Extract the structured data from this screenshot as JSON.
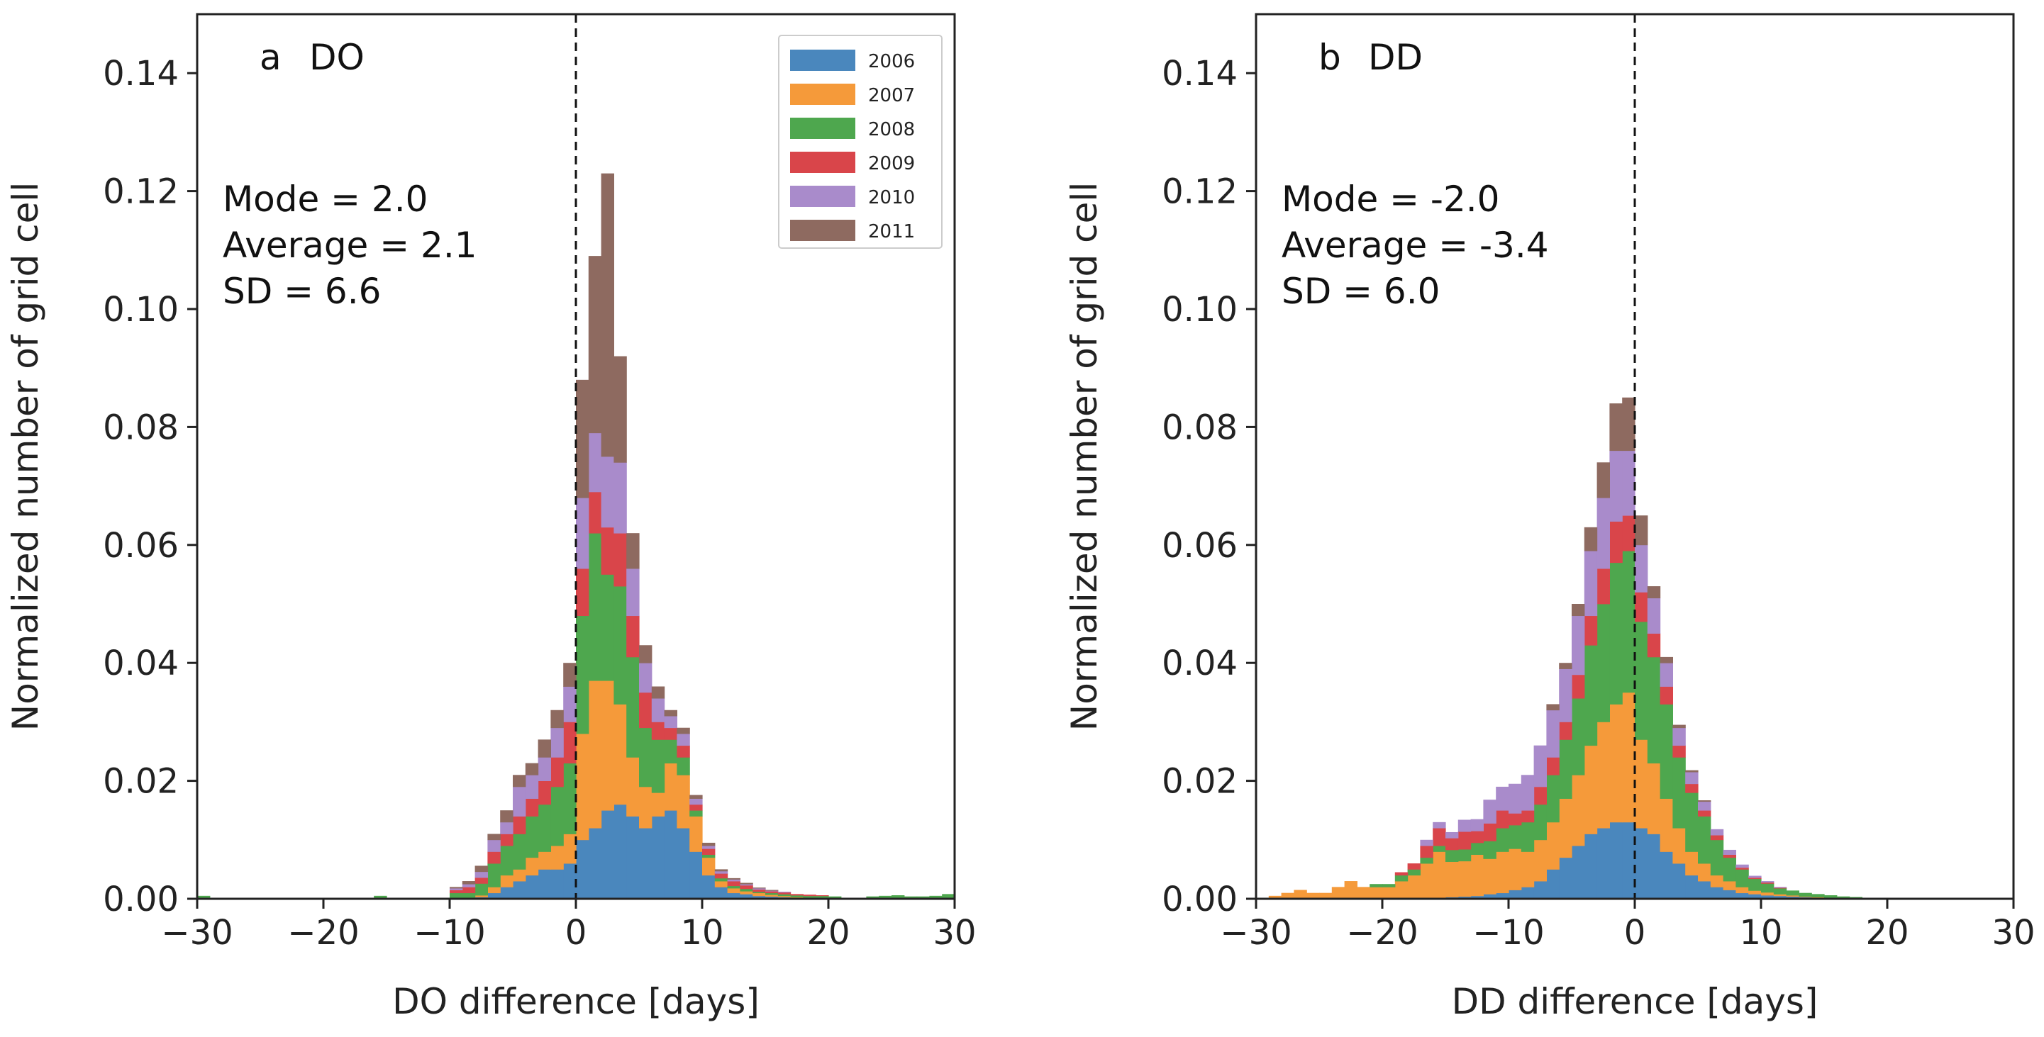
{
  "chart_data": [
    {
      "type": "bar",
      "subtype": "stacked-histogram",
      "panel_label": "a",
      "title": "DO",
      "xlabel": "DO difference [days]",
      "ylabel": "Normalized number of grid cell",
      "xlim": [
        -30,
        30
      ],
      "ylim": [
        0,
        0.15
      ],
      "xticks": [
        -30,
        -20,
        -10,
        0,
        10,
        20,
        30
      ],
      "xtick_labels": [
        "−30",
        "−20",
        "−10",
        "0",
        "10",
        "20",
        "30"
      ],
      "yticks": [
        0.0,
        0.02,
        0.04,
        0.06,
        0.08,
        0.1,
        0.12,
        0.14
      ],
      "ytick_labels": [
        "0.00",
        "0.02",
        "0.04",
        "0.06",
        "0.08",
        "0.10",
        "0.12",
        "0.14"
      ],
      "vline_x": 0,
      "bin_width": 1,
      "stats": [
        "Mode = 2.0",
        "Average = 2.1",
        "SD = 6.6"
      ],
      "legend": true,
      "legend_position": "top-right",
      "bins": [
        -30,
        -29,
        -28,
        -27,
        -26,
        -25,
        -24,
        -23,
        -22,
        -21,
        -20,
        -19,
        -18,
        -17,
        -16,
        -15,
        -14,
        -13,
        -12,
        -11,
        -10,
        -9,
        -8,
        -7,
        -6,
        -5,
        -4,
        -3,
        -2,
        -1,
        0,
        1,
        2,
        3,
        4,
        5,
        6,
        7,
        8,
        9,
        10,
        11,
        12,
        13,
        14,
        15,
        16,
        17,
        18,
        19,
        20,
        21,
        22,
        23,
        24,
        25,
        26,
        27,
        28,
        29
      ],
      "series": [
        {
          "name": "2006",
          "values": [
            0,
            0,
            0,
            0,
            0,
            0,
            0,
            0,
            0,
            0,
            0,
            0,
            0,
            0,
            0,
            0,
            0,
            0,
            0,
            0,
            0,
            0,
            0.0003,
            0.001,
            0.002,
            0.003,
            0.004,
            0.005,
            0.005,
            0.006,
            0.01,
            0.012,
            0.015,
            0.016,
            0.014,
            0.012,
            0.014,
            0.015,
            0.012,
            0.008,
            0.004,
            0.002,
            0.001,
            0.0008,
            0.0005,
            0.0004,
            0.0003,
            0.0002,
            0.0001,
            0.0001,
            0.0001,
            0,
            0,
            0,
            0,
            0,
            0,
            0,
            0,
            0
          ]
        },
        {
          "name": "2007",
          "values": [
            0,
            0,
            0,
            0,
            0,
            0,
            0,
            0,
            0,
            0,
            0,
            0,
            0,
            0,
            0,
            0,
            0,
            0,
            0,
            0,
            0,
            0,
            0.0003,
            0.001,
            0.002,
            0.002,
            0.003,
            0.003,
            0.004,
            0.005,
            0.018,
            0.025,
            0.022,
            0.017,
            0.01,
            0.007,
            0.004,
            0.008,
            0.009,
            0.006,
            0.003,
            0.001,
            0.0008,
            0.0005,
            0.0005,
            0.0003,
            0.0002,
            0.0001,
            0.0001,
            0.0001,
            0.0001,
            0,
            0,
            0,
            0,
            0,
            0,
            0,
            0,
            0
          ]
        },
        {
          "name": "2008",
          "values": [
            0.0005,
            0,
            0,
            0,
            0,
            0,
            0,
            0,
            0,
            0,
            0,
            0,
            0,
            0,
            0.0005,
            0,
            0,
            0,
            0,
            0,
            0.001,
            0.001,
            0.002,
            0.004,
            0.005,
            0.006,
            0.007,
            0.008,
            0.01,
            0.012,
            0.02,
            0.025,
            0.018,
            0.02,
            0.017,
            0.01,
            0.009,
            0.004,
            0.003,
            0.001,
            0.0005,
            0.0005,
            0.0004,
            0.0004,
            0.0002,
            0.0003,
            0.0003,
            0.0003,
            0.0003,
            0.0003,
            0.0002,
            0.0001,
            0.0001,
            0.0004,
            0.0005,
            0.0006,
            0.0004,
            0.0004,
            0.0005,
            0.0008
          ]
        },
        {
          "name": "2009",
          "values": [
            0,
            0,
            0,
            0,
            0,
            0,
            0,
            0,
            0,
            0,
            0,
            0,
            0,
            0,
            0,
            0,
            0,
            0,
            0,
            0,
            0.0005,
            0.001,
            0.001,
            0.002,
            0.002,
            0.003,
            0.003,
            0.004,
            0.005,
            0.007,
            0.008,
            0.007,
            0.008,
            0.009,
            0.007,
            0.006,
            0.003,
            0.002,
            0.002,
            0.001,
            0.001,
            0.0008,
            0.0008,
            0.0006,
            0.0004,
            0.0003,
            0.0003,
            0.0002,
            0.0002,
            0.0001,
            0,
            0,
            0,
            0,
            0,
            0,
            0,
            0,
            0,
            0
          ]
        },
        {
          "name": "2010",
          "values": [
            0,
            0,
            0,
            0,
            0,
            0,
            0,
            0,
            0,
            0,
            0,
            0,
            0,
            0,
            0,
            0,
            0,
            0,
            0,
            0,
            0.0003,
            0.0005,
            0.001,
            0.002,
            0.002,
            0.005,
            0.004,
            0.004,
            0.005,
            0.006,
            0.012,
            0.01,
            0.012,
            0.012,
            0.008,
            0.005,
            0.004,
            0.002,
            0.002,
            0.001,
            0.0005,
            0.0004,
            0.0003,
            0.0002,
            0.0002,
            0.0001,
            0.0001,
            0,
            0,
            0,
            0,
            0,
            0,
            0,
            0,
            0,
            0,
            0,
            0,
            0
          ]
        },
        {
          "name": "2011",
          "values": [
            0,
            0,
            0,
            0,
            0,
            0,
            0,
            0,
            0,
            0,
            0,
            0,
            0,
            0,
            0,
            0,
            0,
            0,
            0,
            0,
            0.0002,
            0.0005,
            0.001,
            0.001,
            0.002,
            0.002,
            0.002,
            0.003,
            0.003,
            0.004,
            0.02,
            0.03,
            0.048,
            0.018,
            0.006,
            0.003,
            0.002,
            0.001,
            0.001,
            0.0006,
            0.0005,
            0.0003,
            0.0002,
            0.0002,
            0.0001,
            0.0001,
            0,
            0,
            0,
            0,
            0,
            0,
            0,
            0,
            0,
            0,
            0,
            0,
            0,
            0
          ]
        }
      ]
    },
    {
      "type": "bar",
      "subtype": "stacked-histogram",
      "panel_label": "b",
      "title": "DD",
      "xlabel": "DD difference [days]",
      "ylabel": "Normalized number of grid cell",
      "xlim": [
        -30,
        30
      ],
      "ylim": [
        0,
        0.15
      ],
      "xticks": [
        -30,
        -20,
        -10,
        0,
        10,
        20,
        30
      ],
      "xtick_labels": [
        "−30",
        "−20",
        "−10",
        "0",
        "10",
        "20",
        "30"
      ],
      "yticks": [
        0.0,
        0.02,
        0.04,
        0.06,
        0.08,
        0.1,
        0.12,
        0.14
      ],
      "ytick_labels": [
        "0.00",
        "0.02",
        "0.04",
        "0.06",
        "0.08",
        "0.10",
        "0.12",
        "0.14"
      ],
      "vline_x": 0,
      "bin_width": 1,
      "stats": [
        "Mode = -2.0",
        "Average = -3.4",
        "SD = 6.0"
      ],
      "legend": false,
      "bins": [
        -30,
        -29,
        -28,
        -27,
        -26,
        -25,
        -24,
        -23,
        -22,
        -21,
        -20,
        -19,
        -18,
        -17,
        -16,
        -15,
        -14,
        -13,
        -12,
        -11,
        -10,
        -9,
        -8,
        -7,
        -6,
        -5,
        -4,
        -3,
        -2,
        -1,
        0,
        1,
        2,
        3,
        4,
        5,
        6,
        7,
        8,
        9,
        10,
        11,
        12,
        13,
        14,
        15,
        16,
        17,
        18,
        19,
        20,
        21,
        22,
        23,
        24,
        25,
        26,
        27,
        28,
        29
      ],
      "series": [
        {
          "name": "2006",
          "values": [
            0,
            0,
            0,
            0,
            0,
            0,
            0,
            0,
            0,
            0,
            0,
            0,
            0,
            0,
            0,
            0.0003,
            0.0004,
            0.0005,
            0.0008,
            0.001,
            0.0015,
            0.002,
            0.003,
            0.005,
            0.007,
            0.009,
            0.011,
            0.012,
            0.013,
            0.013,
            0.012,
            0.011,
            0.008,
            0.006,
            0.004,
            0.003,
            0.002,
            0.0015,
            0.001,
            0.0008,
            0.0006,
            0.0005,
            0.0004,
            0.0003,
            0.0002,
            0.0002,
            0.0001,
            0.0001,
            0,
            0,
            0,
            0,
            0,
            0,
            0,
            0,
            0,
            0,
            0,
            0
          ]
        },
        {
          "name": "2007",
          "values": [
            0,
            0.0005,
            0.001,
            0.0015,
            0.001,
            0.001,
            0.002,
            0.003,
            0.002,
            0.002,
            0.002,
            0.003,
            0.004,
            0.006,
            0.008,
            0.006,
            0.006,
            0.007,
            0.006,
            0.007,
            0.007,
            0.006,
            0.007,
            0.008,
            0.01,
            0.012,
            0.015,
            0.018,
            0.02,
            0.022,
            0.015,
            0.012,
            0.009,
            0.006,
            0.004,
            0.003,
            0.002,
            0.0015,
            0.001,
            0.0006,
            0.0005,
            0.0003,
            0.0002,
            0.0001,
            0.0001,
            0,
            0,
            0,
            0,
            0,
            0,
            0,
            0,
            0,
            0,
            0,
            0,
            0,
            0,
            0
          ]
        },
        {
          "name": "2008",
          "values": [
            0,
            0,
            0,
            0,
            0,
            0,
            0,
            0,
            0,
            0.0005,
            0.0005,
            0.001,
            0.001,
            0.001,
            0.001,
            0.002,
            0.002,
            0.002,
            0.003,
            0.004,
            0.004,
            0.005,
            0.006,
            0.008,
            0.01,
            0.013,
            0.017,
            0.02,
            0.024,
            0.024,
            0.02,
            0.018,
            0.016,
            0.012,
            0.01,
            0.008,
            0.006,
            0.004,
            0.003,
            0.002,
            0.0015,
            0.001,
            0.0008,
            0.0006,
            0.0005,
            0.0004,
            0.0003,
            0.0002,
            0.0001,
            0.0001,
            0,
            0,
            0,
            0,
            0,
            0,
            0,
            0,
            0,
            0
          ]
        },
        {
          "name": "2009",
          "values": [
            0,
            0,
            0,
            0,
            0,
            0,
            0,
            0,
            0,
            0,
            0,
            0.0005,
            0.001,
            0.002,
            0.003,
            0.002,
            0.003,
            0.002,
            0.003,
            0.003,
            0.002,
            0.002,
            0.003,
            0.003,
            0.003,
            0.004,
            0.005,
            0.006,
            0.007,
            0.006,
            0.005,
            0.004,
            0.003,
            0.002,
            0.0015,
            0.001,
            0.0008,
            0.0005,
            0.0003,
            0.0002,
            0.0002,
            0.0001,
            0,
            0,
            0,
            0,
            0,
            0,
            0,
            0,
            0,
            0,
            0,
            0,
            0,
            0,
            0,
            0,
            0,
            0
          ]
        },
        {
          "name": "2010",
          "values": [
            0,
            0,
            0,
            0,
            0,
            0,
            0,
            0,
            0,
            0,
            0,
            0,
            0,
            0.001,
            0.001,
            0.001,
            0.002,
            0.002,
            0.004,
            0.004,
            0.005,
            0.006,
            0.007,
            0.008,
            0.009,
            0.01,
            0.011,
            0.012,
            0.012,
            0.011,
            0.008,
            0.006,
            0.004,
            0.003,
            0.002,
            0.0015,
            0.001,
            0.0008,
            0.0005,
            0.0003,
            0.0002,
            0.0001,
            0,
            0,
            0,
            0,
            0,
            0,
            0,
            0,
            0,
            0,
            0,
            0,
            0,
            0,
            0,
            0,
            0,
            0
          ]
        },
        {
          "name": "2011",
          "values": [
            0,
            0,
            0,
            0,
            0,
            0,
            0,
            0,
            0,
            0,
            0,
            0,
            0,
            0,
            0,
            0,
            0,
            0,
            0,
            0,
            0,
            0,
            0,
            0.001,
            0.001,
            0.002,
            0.004,
            0.006,
            0.008,
            0.009,
            0.005,
            0.002,
            0.001,
            0.0005,
            0.0003,
            0.0002,
            0,
            0,
            0,
            0,
            0,
            0,
            0,
            0,
            0,
            0,
            0,
            0,
            0,
            0,
            0,
            0,
            0,
            0,
            0,
            0,
            0,
            0,
            0,
            0
          ]
        }
      ]
    }
  ],
  "colors": {
    "2006": "#4a87bd",
    "2007": "#f59a3a",
    "2008": "#4ea74e",
    "2009": "#d9454a",
    "2010": "#a98bcb",
    "2011": "#8e6a60",
    "axis": "#222222",
    "vline": "#111111"
  }
}
